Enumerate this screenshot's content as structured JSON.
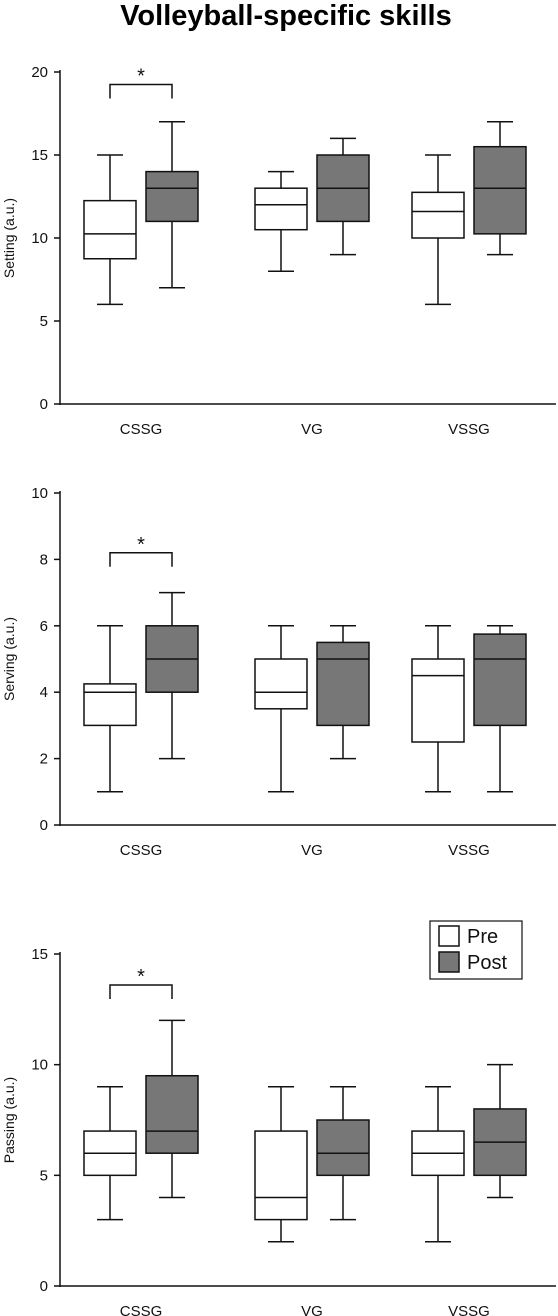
{
  "title": "Volleyball-specific skills",
  "colors": {
    "pre": "#ffffff",
    "post": "#777777",
    "stroke": "#111111"
  },
  "chart_data": [
    {
      "type": "box",
      "ylabel": "Setting (a.u.)",
      "ylim": [
        0,
        20
      ],
      "yticks": [
        0,
        5,
        10,
        15,
        20
      ],
      "categories": [
        "CSSG",
        "VG",
        "VSSG"
      ],
      "series": [
        {
          "name": "Pre",
          "boxes": [
            {
              "min": 6,
              "q1": 8.75,
              "median": 10.25,
              "q3": 12.25,
              "max": 15
            },
            {
              "min": 8,
              "q1": 10.5,
              "median": 12,
              "q3": 13,
              "max": 14
            },
            {
              "min": 6,
              "q1": 10,
              "median": 11.6,
              "q3": 12.75,
              "max": 15
            }
          ]
        },
        {
          "name": "Post",
          "boxes": [
            {
              "min": 7,
              "q1": 11,
              "median": 13,
              "q3": 14,
              "max": 17
            },
            {
              "min": 9,
              "q1": 11,
              "median": 13,
              "q3": 15,
              "max": 16
            },
            {
              "min": 9,
              "q1": 10.25,
              "median": 13,
              "q3": 15.5,
              "max": 17
            }
          ]
        }
      ],
      "significance": [
        {
          "category": "CSSG",
          "symbol": "*",
          "level": 19.25
        }
      ]
    },
    {
      "type": "box",
      "ylabel": "Serving (a.u.)",
      "ylim": [
        0,
        10
      ],
      "yticks": [
        0,
        2,
        4,
        6,
        8,
        10
      ],
      "categories": [
        "CSSG",
        "VG",
        "VSSG"
      ],
      "series": [
        {
          "name": "Pre",
          "boxes": [
            {
              "min": 1,
              "q1": 3,
              "median": 4,
              "q3": 4.25,
              "max": 6
            },
            {
              "min": 1,
              "q1": 3.5,
              "median": 4,
              "q3": 5,
              "max": 6
            },
            {
              "min": 1,
              "q1": 2.5,
              "median": 4.5,
              "q3": 5,
              "max": 6
            }
          ]
        },
        {
          "name": "Post",
          "boxes": [
            {
              "min": 2,
              "q1": 4,
              "median": 5,
              "q3": 6,
              "max": 7
            },
            {
              "min": 2,
              "q1": 3,
              "median": 5,
              "q3": 5.5,
              "max": 6
            },
            {
              "min": 1,
              "q1": 3,
              "median": 5,
              "q3": 5.75,
              "max": 6
            }
          ]
        }
      ],
      "significance": [
        {
          "category": "CSSG",
          "symbol": "*",
          "level": 8.2
        }
      ]
    },
    {
      "type": "box",
      "ylabel": "Passing (a.u.)",
      "ylim": [
        0,
        15
      ],
      "yticks": [
        0,
        5,
        10,
        15
      ],
      "categories": [
        "CSSG",
        "VG",
        "VSSG"
      ],
      "series": [
        {
          "name": "Pre",
          "boxes": [
            {
              "min": 3,
              "q1": 5,
              "median": 6,
              "q3": 7,
              "max": 9
            },
            {
              "min": 2,
              "q1": 3,
              "median": 4,
              "q3": 7,
              "max": 9
            },
            {
              "min": 2,
              "q1": 5,
              "median": 6,
              "q3": 7,
              "max": 9
            }
          ]
        },
        {
          "name": "Post",
          "boxes": [
            {
              "min": 4,
              "q1": 6,
              "median": 7,
              "q3": 9.5,
              "max": 12
            },
            {
              "min": 3,
              "q1": 5,
              "median": 6,
              "q3": 7.5,
              "max": 9
            },
            {
              "min": 4,
              "q1": 5,
              "median": 6.5,
              "q3": 8,
              "max": 10
            }
          ]
        }
      ],
      "significance": [
        {
          "category": "CSSG",
          "symbol": "*",
          "level": 13.6
        }
      ],
      "legend": {
        "position": "top-right",
        "entries": [
          "Pre",
          "Post"
        ]
      }
    }
  ]
}
